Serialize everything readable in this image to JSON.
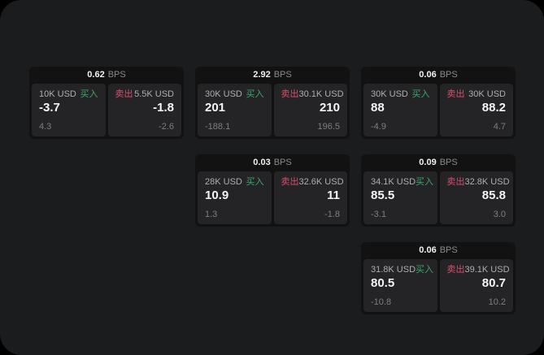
{
  "colors": {
    "outer_bg": "#000000",
    "panel_bg": "#1b1c1d",
    "card_bg": "#121213",
    "subpanel_bg": "#242427",
    "bps_value": "#f2f2f2",
    "bps_unit": "#8a8a8c",
    "size_label": "#aeaeb0",
    "price": "#f5f5f5",
    "delta": "#7e7e80",
    "buy_green": "#3fa56a",
    "sell_red": "#d64e6b"
  },
  "labels": {
    "bps": "BPS",
    "buy": "买入",
    "sell": "卖出"
  },
  "cards": [
    {
      "row": 1,
      "col": 1,
      "bps": "0.62",
      "buy": {
        "size": "10K USD",
        "price": "-3.7",
        "delta": "4.3"
      },
      "sell": {
        "size": "5.5K USD",
        "price": "-1.8",
        "delta": "-2.6"
      }
    },
    {
      "row": 1,
      "col": 2,
      "bps": "2.92",
      "buy": {
        "size": "30K USD",
        "price": "201",
        "delta": "-188.1"
      },
      "sell": {
        "size": "30.1K USD",
        "price": "210",
        "delta": "196.5"
      }
    },
    {
      "row": 1,
      "col": 3,
      "bps": "0.06",
      "buy": {
        "size": "30K USD",
        "price": "88",
        "delta": "-4.9"
      },
      "sell": {
        "size": "30K USD",
        "price": "88.2",
        "delta": "4.7"
      }
    },
    {
      "row": 2,
      "col": 2,
      "bps": "0.03",
      "buy": {
        "size": "28K USD",
        "price": "10.9",
        "delta": "1.3"
      },
      "sell": {
        "size": "32.6K USD",
        "price": "11",
        "delta": "-1.8"
      }
    },
    {
      "row": 2,
      "col": 3,
      "bps": "0.09",
      "buy": {
        "size": "34.1K USD",
        "price": "85.5",
        "delta": "-3.1"
      },
      "sell": {
        "size": "32.8K USD",
        "price": "85.8",
        "delta": "3.0"
      }
    },
    {
      "row": 3,
      "col": 3,
      "bps": "0.06",
      "buy": {
        "size": "31.8K USD",
        "price": "80.5",
        "delta": "-10.8"
      },
      "sell": {
        "size": "39.1K USD",
        "price": "80.7",
        "delta": "10.2"
      }
    }
  ]
}
